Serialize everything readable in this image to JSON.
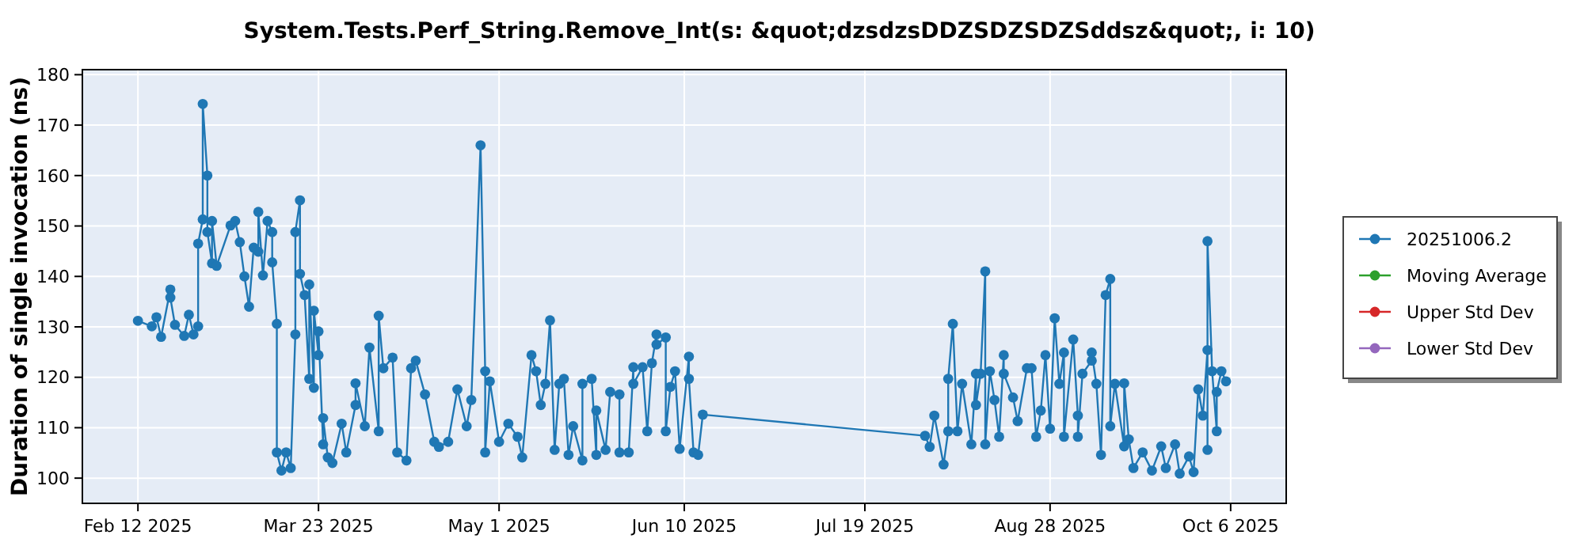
{
  "chart_data": {
    "type": "line",
    "title": "System.Tests.Perf_String.Remove_Int(s: &quot;dzsdzsDDZSDZSDZSddsz&quot;, i: 10)",
    "ylabel": "Duration of single invocation (ns)",
    "xlim": [
      "2025-01-31",
      "2025-10-18"
    ],
    "xticks": [
      {
        "value": "2025-02-12",
        "label": "Feb 12 2025"
      },
      {
        "value": "2025-03-23",
        "label": "Mar 23 2025"
      },
      {
        "value": "2025-05-01",
        "label": "May 1 2025"
      },
      {
        "value": "2025-06-10",
        "label": "Jun 10 2025"
      },
      {
        "value": "2025-07-19",
        "label": "Jul 19 2025"
      },
      {
        "value": "2025-08-28",
        "label": "Aug 28 2025"
      },
      {
        "value": "2025-10-06",
        "label": "Oct 6 2025"
      }
    ],
    "ylim": [
      95,
      181
    ],
    "yticks": [
      100,
      110,
      120,
      130,
      140,
      150,
      160,
      170,
      180
    ],
    "grid": true,
    "legend": "right",
    "marker": "circle",
    "line_style": "solid",
    "series": [
      {
        "name": "20251006.2",
        "color": "#1f77b4",
        "x": [
          "2025-02-12",
          "2025-02-15",
          "2025-02-16",
          "2025-02-17",
          "2025-02-19",
          "2025-02-19",
          "2025-02-20",
          "2025-02-22",
          "2025-02-23",
          "2025-02-24",
          "2025-02-25",
          "2025-02-25",
          "2025-02-26",
          "2025-02-26",
          "2025-02-27",
          "2025-02-27",
          "2025-02-28",
          "2025-02-28",
          "2025-03-01",
          "2025-03-04",
          "2025-03-05",
          "2025-03-06",
          "2025-03-07",
          "2025-03-08",
          "2025-03-09",
          "2025-03-10",
          "2025-03-10",
          "2025-03-11",
          "2025-03-12",
          "2025-03-13",
          "2025-03-13",
          "2025-03-14",
          "2025-03-14",
          "2025-03-15",
          "2025-03-16",
          "2025-03-17",
          "2025-03-18",
          "2025-03-18",
          "2025-03-19",
          "2025-03-19",
          "2025-03-20",
          "2025-03-21",
          "2025-03-21",
          "2025-03-22",
          "2025-03-22",
          "2025-03-23",
          "2025-03-23",
          "2025-03-24",
          "2025-03-24",
          "2025-03-25",
          "2025-03-26",
          "2025-03-28",
          "2025-03-29",
          "2025-03-31",
          "2025-03-31",
          "2025-04-02",
          "2025-04-03",
          "2025-04-05",
          "2025-04-05",
          "2025-04-06",
          "2025-04-08",
          "2025-04-09",
          "2025-04-11",
          "2025-04-12",
          "2025-04-13",
          "2025-04-15",
          "2025-04-17",
          "2025-04-18",
          "2025-04-20",
          "2025-04-22",
          "2025-04-24",
          "2025-04-25",
          "2025-04-27",
          "2025-04-28",
          "2025-04-28",
          "2025-04-29",
          "2025-05-01",
          "2025-05-03",
          "2025-05-05",
          "2025-05-06",
          "2025-05-08",
          "2025-05-09",
          "2025-05-10",
          "2025-05-11",
          "2025-05-12",
          "2025-05-13",
          "2025-05-14",
          "2025-05-15",
          "2025-05-16",
          "2025-05-17",
          "2025-05-19",
          "2025-05-19",
          "2025-05-21",
          "2025-05-22",
          "2025-05-22",
          "2025-05-24",
          "2025-05-25",
          "2025-05-27",
          "2025-05-27",
          "2025-05-29",
          "2025-05-30",
          "2025-05-30",
          "2025-06-01",
          "2025-06-02",
          "2025-06-03",
          "2025-06-04",
          "2025-06-04",
          "2025-06-06",
          "2025-06-06",
          "2025-06-07",
          "2025-06-08",
          "2025-06-09",
          "2025-06-11",
          "2025-06-11",
          "2025-06-12",
          "2025-06-13",
          "2025-06-14",
          "2025-08-01",
          "2025-08-02",
          "2025-08-03",
          "2025-08-05",
          "2025-08-06",
          "2025-08-06",
          "2025-08-07",
          "2025-08-08",
          "2025-08-09",
          "2025-08-11",
          "2025-08-12",
          "2025-08-12",
          "2025-08-13",
          "2025-08-14",
          "2025-08-14",
          "2025-08-15",
          "2025-08-16",
          "2025-08-17",
          "2025-08-18",
          "2025-08-18",
          "2025-08-20",
          "2025-08-21",
          "2025-08-23",
          "2025-08-24",
          "2025-08-25",
          "2025-08-26",
          "2025-08-27",
          "2025-08-28",
          "2025-08-29",
          "2025-08-30",
          "2025-08-31",
          "2025-08-31",
          "2025-09-02",
          "2025-09-03",
          "2025-09-03",
          "2025-09-04",
          "2025-09-06",
          "2025-09-06",
          "2025-09-07",
          "2025-09-08",
          "2025-09-09",
          "2025-09-10",
          "2025-09-10",
          "2025-09-11",
          "2025-09-13",
          "2025-09-13",
          "2025-09-14",
          "2025-09-15",
          "2025-09-17",
          "2025-09-19",
          "2025-09-21",
          "2025-09-22",
          "2025-09-24",
          "2025-09-25",
          "2025-09-27",
          "2025-09-28",
          "2025-09-29",
          "2025-09-30",
          "2025-10-01",
          "2025-10-01",
          "2025-10-01",
          "2025-10-02",
          "2025-10-03",
          "2025-10-03",
          "2025-10-04",
          "2025-10-05"
        ],
        "values": [
          131.2,
          130.1,
          131.9,
          128.0,
          137.4,
          135.8,
          130.4,
          128.2,
          132.4,
          128.5,
          130.1,
          146.5,
          151.3,
          174.2,
          160,
          148.8,
          142.6,
          151,
          142.1,
          150.1,
          151,
          146.8,
          140,
          134,
          145.7,
          144.9,
          152.8,
          140.2,
          151,
          148.8,
          142.8,
          130.6,
          105.1,
          101.5,
          105.1,
          102,
          128.5,
          148.8,
          155.1,
          140.5,
          136.3,
          119.7,
          138.4,
          117.9,
          133.2,
          124.4,
          129.1,
          106.7,
          111.9,
          104.1,
          103,
          110.8,
          105.1,
          114.5,
          118.8,
          110.3,
          125.9,
          109.3,
          132.2,
          121.8,
          123.9,
          105.1,
          103.5,
          121.8,
          123.3,
          116.6,
          107.2,
          106.2,
          107.2,
          117.6,
          110.3,
          115.5,
          166,
          121.2,
          105.1,
          119.2,
          107.2,
          110.8,
          108.2,
          104.1,
          124.4,
          121.2,
          114.5,
          118.7,
          131.3,
          105.6,
          118.7,
          119.7,
          104.6,
          110.3,
          103.5,
          118.7,
          119.7,
          104.6,
          113.4,
          105.6,
          117.1,
          116.6,
          105.1,
          105.1,
          122,
          118.7,
          122,
          109.3,
          122.8,
          128.5,
          126.5,
          127.9,
          109.3,
          118.1,
          121.2,
          105.8,
          124.1,
          119.7,
          105.1,
          104.6,
          112.6,
          108.4,
          106.2,
          112.4,
          102.7,
          109.3,
          119.7,
          130.6,
          109.3,
          118.7,
          106.7,
          120.7,
          114.5,
          120.7,
          141,
          106.7,
          121.2,
          115.5,
          108.2,
          124.4,
          120.7,
          116,
          111.3,
          121.8,
          121.8,
          108.2,
          113.4,
          124.4,
          109.8,
          131.7,
          118.7,
          124.9,
          108.2,
          127.5,
          112.4,
          108.2,
          120.7,
          123.3,
          124.9,
          118.7,
          104.6,
          136.3,
          139.5,
          110.3,
          118.7,
          106.3,
          118.8,
          107.7,
          102,
          105.1,
          101.5,
          106.3,
          102,
          106.7,
          100.9,
          104.3,
          101.2,
          117.6,
          112.4,
          125.4,
          105.6,
          147,
          121.2,
          109.3,
          117.1,
          121.2,
          119.2
        ]
      },
      {
        "name": "Moving Average",
        "color": "#2ca02c"
      },
      {
        "name": "Upper Std Dev",
        "color": "#d62728"
      },
      {
        "name": "Lower Std Dev",
        "color": "#9467bd"
      }
    ]
  }
}
